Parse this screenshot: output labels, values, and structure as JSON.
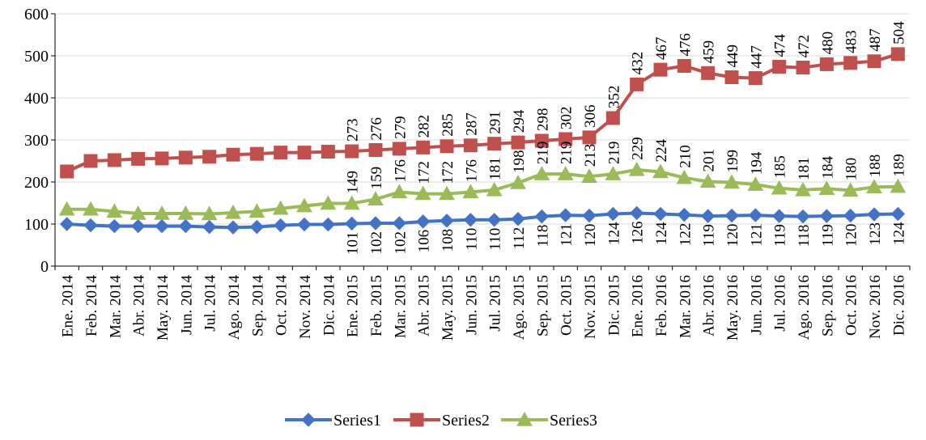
{
  "chart_data": {
    "type": "line",
    "title": "",
    "xlabel": "",
    "ylabel": "",
    "ylim": [
      0,
      600
    ],
    "yticks": [
      "0",
      "100",
      "200",
      "300",
      "400",
      "500",
      "600"
    ],
    "grid": true,
    "legend_position": "bottom",
    "categories": [
      "Ene. 2014",
      "Feb. 2014",
      "Mar. 2014",
      "Abr. 2014",
      "May. 2014",
      "Jun. 2014",
      "Jul. 2014",
      "Ago. 2014",
      "Sep. 2014",
      "Oct. 2014",
      "Nov. 2014",
      "Dic. 2014",
      "Ene. 2015",
      "Feb. 2015",
      "Mar. 2015",
      "Abr. 2015",
      "May. 2015",
      "Jun. 2015",
      "Jul. 2015",
      "Ago. 2015",
      "Sep. 2015",
      "Oct. 2015",
      "Nov. 2015",
      "Dic. 2015",
      "Ene. 2016",
      "Feb. 2016",
      "Mar. 2016",
      "Abr. 2016",
      "May. 2016",
      "Jun. 2016",
      "Jul. 2016",
      "Ago. 2016",
      "Sep. 2016",
      "Oct. 2016",
      "Nov. 2016",
      "Dic. 2016"
    ],
    "series": [
      {
        "name": "Series1",
        "color": "#4472C4",
        "marker": "diamond",
        "values": [
          100,
          97,
          95,
          95,
          95,
          95,
          93,
          92,
          93,
          97,
          99,
          99,
          101,
          102,
          102,
          106,
          108,
          110,
          110,
          112,
          118,
          121,
          120,
          124,
          126,
          124,
          122,
          119,
          120,
          121,
          119,
          118,
          119,
          120,
          123,
          124
        ],
        "labeled_from_index": 12
      },
      {
        "name": "Series2",
        "color": "#C0504D",
        "marker": "square",
        "values": [
          225,
          250,
          252,
          255,
          256,
          258,
          260,
          265,
          267,
          270,
          270,
          272,
          273,
          276,
          279,
          282,
          285,
          287,
          291,
          294,
          298,
          302,
          306,
          352,
          432,
          467,
          476,
          459,
          449,
          447,
          474,
          472,
          480,
          483,
          487,
          504
        ],
        "labeled_from_index": 12
      },
      {
        "name": "Series3",
        "color": "#9BBB59",
        "marker": "triangle",
        "values": [
          135,
          135,
          130,
          125,
          125,
          125,
          124,
          127,
          130,
          137,
          143,
          149,
          149,
          159,
          176,
          172,
          172,
          176,
          181,
          198,
          219,
          219,
          213,
          219,
          229,
          224,
          210,
          201,
          199,
          194,
          185,
          181,
          184,
          180,
          188,
          189
        ],
        "labeled_from_index": 12
      }
    ]
  }
}
